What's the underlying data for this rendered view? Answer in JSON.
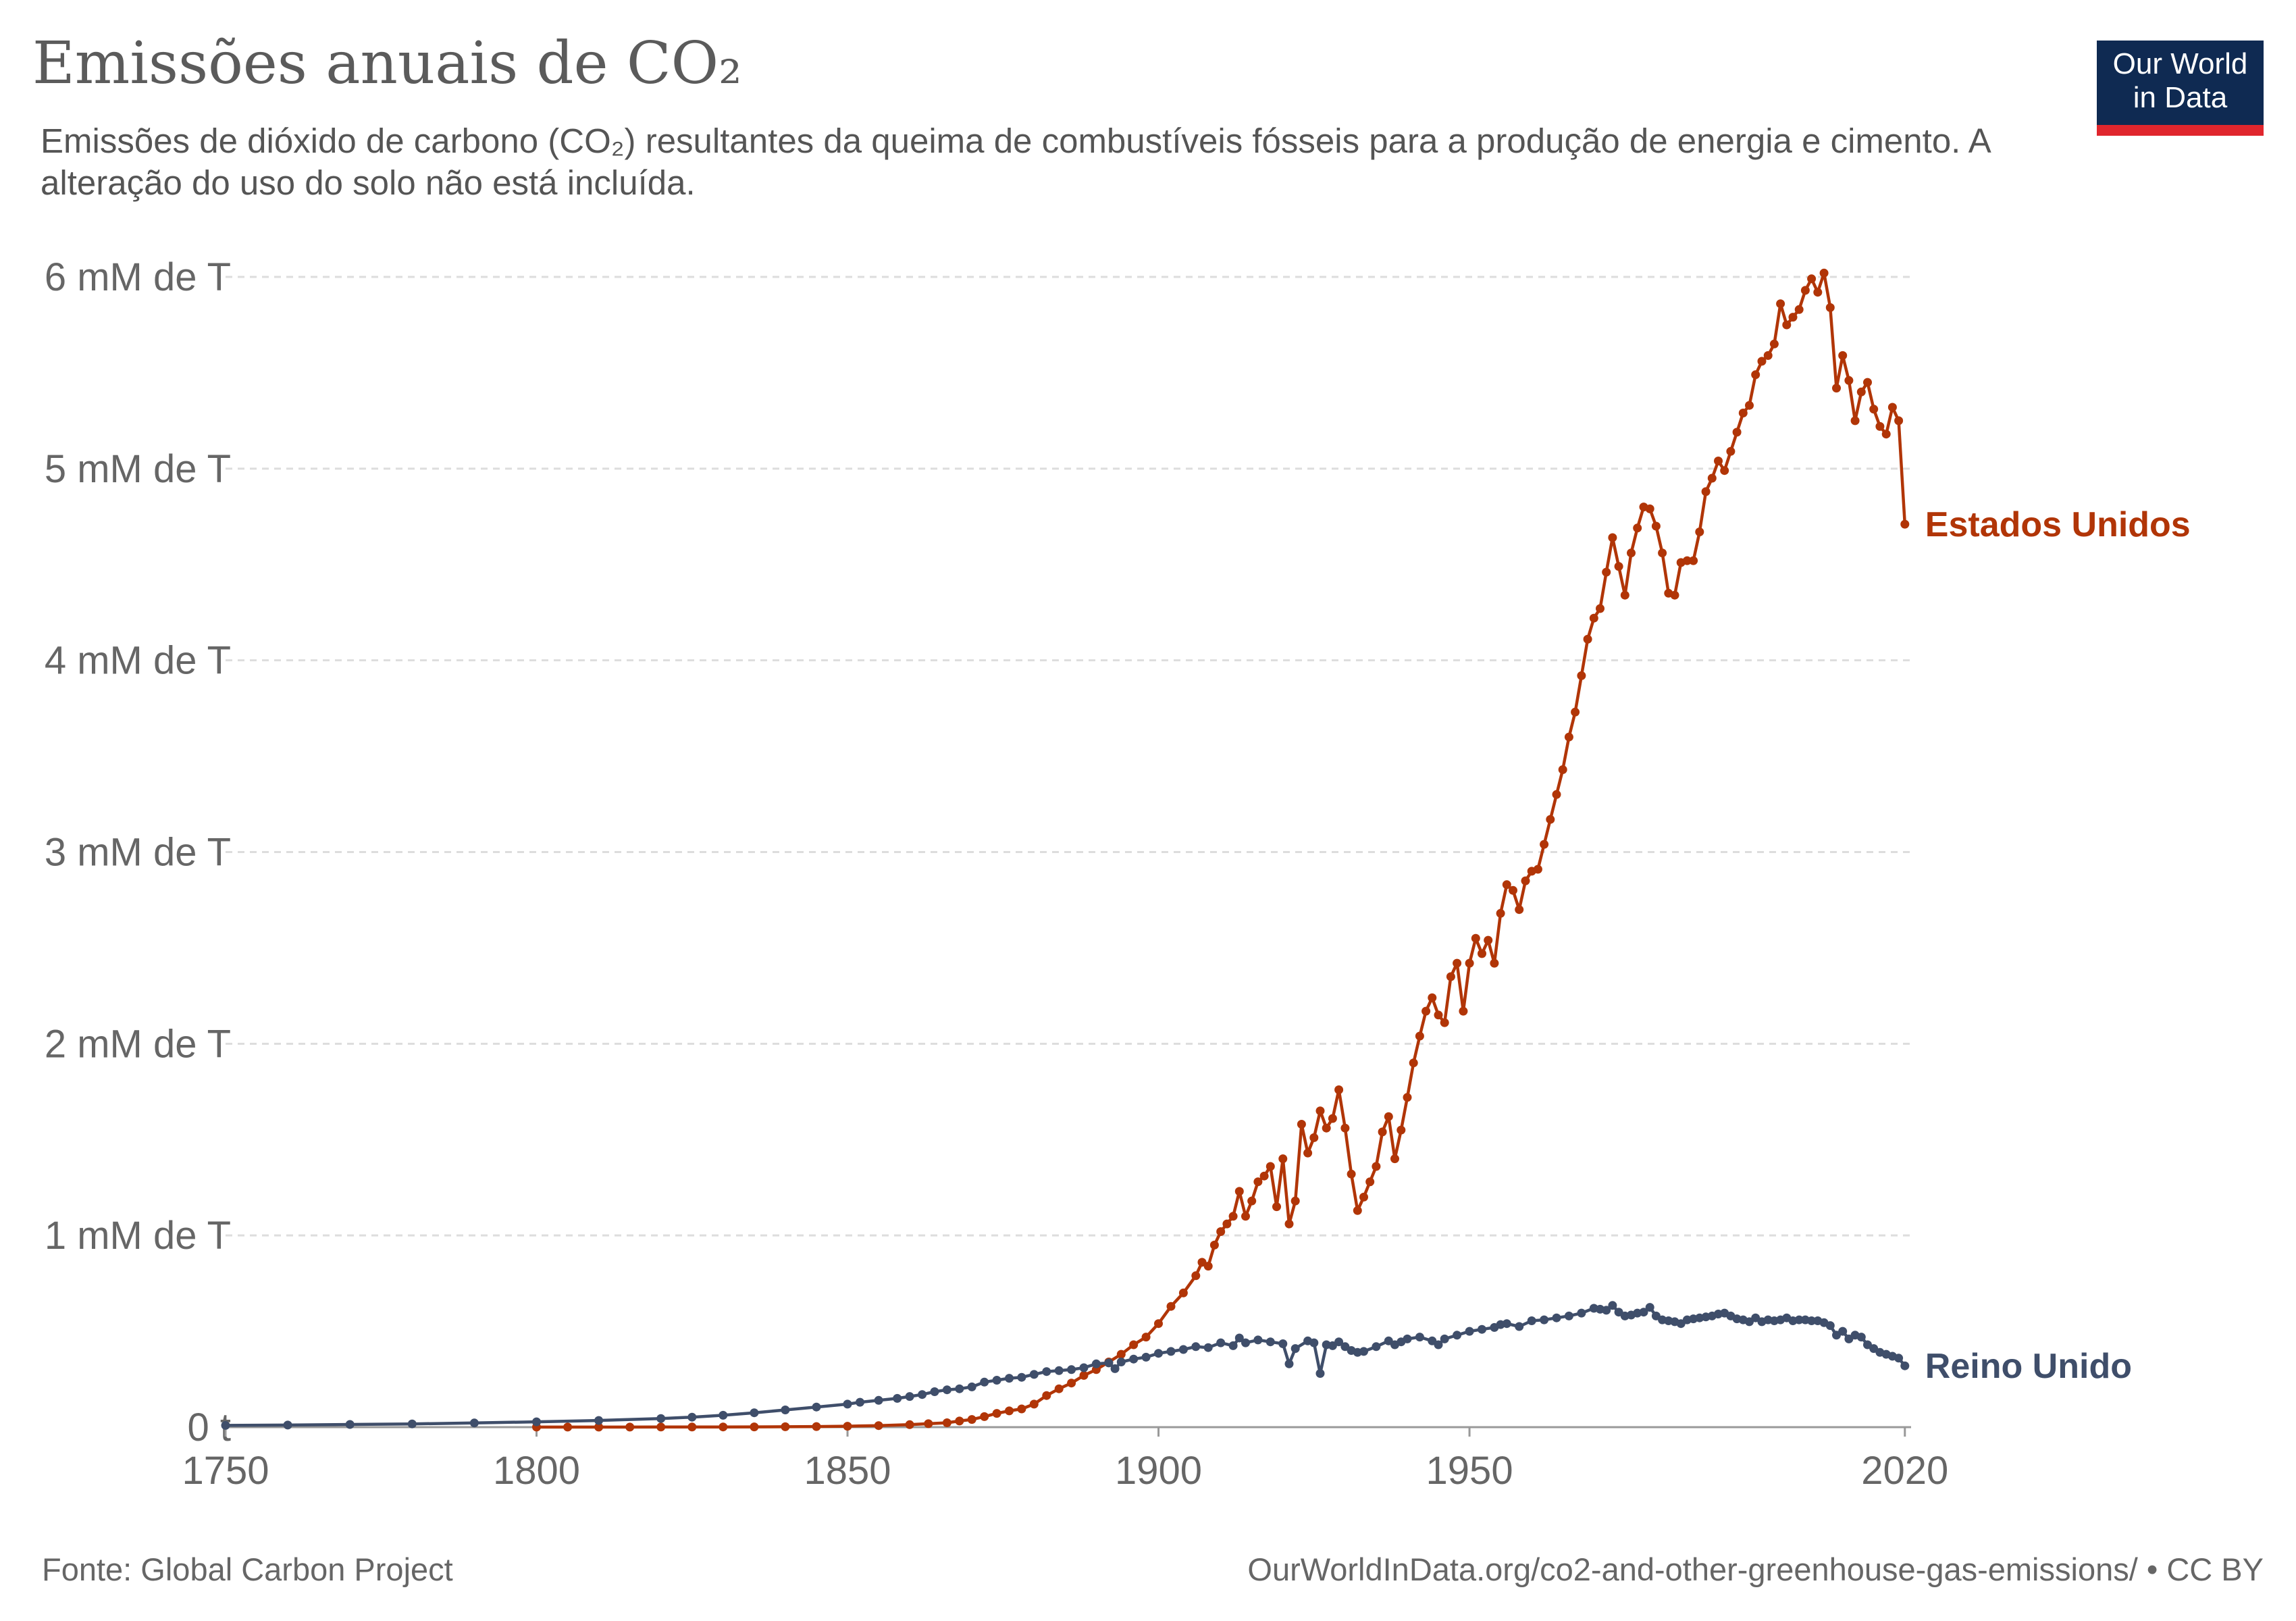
{
  "header": {
    "title": "Emissões anuais de CO₂",
    "subtitle": "Emissões de dióxido de carbono (CO₂) resultantes da queima de combustíveis fósseis para a produção de energia e cimento. A alteração do uso do solo não está incluída."
  },
  "logo": {
    "line1": "Our World",
    "line2": "in Data",
    "bg_color": "#0f2a52",
    "accent_color": "#e0262d"
  },
  "footer": {
    "source": "Fonte: Global Carbon Project",
    "url": "OurWorldInData.org/co2-and-other-greenhouse-gas-emissions/ • CC BY"
  },
  "chart_data": {
    "type": "line",
    "title": "Emissões anuais de CO₂",
    "subtitle": "Emissões de dióxido de carbono (CO₂) resultantes da queima de combustíveis fósseis para a produção de energia e cimento. A alteração do uso do solo não está incluída.",
    "xlabel": "",
    "ylabel": "",
    "xlim": [
      1750,
      2021
    ],
    "ylim": [
      0,
      6000000000
    ],
    "x_ticks": [
      {
        "value": 1750,
        "label": "1750"
      },
      {
        "value": 1800,
        "label": "1800"
      },
      {
        "value": 1850,
        "label": "1850"
      },
      {
        "value": 1900,
        "label": "1900"
      },
      {
        "value": 1950,
        "label": "1950"
      },
      {
        "value": 2020,
        "label": "2020"
      }
    ],
    "y_ticks": [
      {
        "value": 0,
        "label": "0 t"
      },
      {
        "value": 1000000000,
        "label": "1 mM de T"
      },
      {
        "value": 2000000000,
        "label": "2 mM de T"
      },
      {
        "value": 3000000000,
        "label": "3 mM de T"
      },
      {
        "value": 4000000000,
        "label": "4 mM de T"
      },
      {
        "value": 5000000000,
        "label": "5 mM de T"
      },
      {
        "value": 6000000000,
        "label": "6 mM de T"
      }
    ],
    "grid": true,
    "legend": "end-of-line labels",
    "series": [
      {
        "name": "Estados Unidos",
        "color": "#b13507",
        "points": [
          [
            1800,
            0.25
          ],
          [
            1805,
            0.3
          ],
          [
            1810,
            0.4
          ],
          [
            1815,
            0.5
          ],
          [
            1820,
            0.6
          ],
          [
            1825,
            0.8
          ],
          [
            1830,
            1.0
          ],
          [
            1835,
            1.3
          ],
          [
            1840,
            2.0
          ],
          [
            1845,
            3.0
          ],
          [
            1850,
            5.0
          ],
          [
            1855,
            8.0
          ],
          [
            1860,
            13.0
          ],
          [
            1863,
            18.0
          ],
          [
            1866,
            23.0
          ],
          [
            1868,
            32.0
          ],
          [
            1870,
            40.0
          ],
          [
            1872,
            55.0
          ],
          [
            1874,
            72.0
          ],
          [
            1876,
            85.0
          ],
          [
            1878,
            95.0
          ],
          [
            1880,
            120.0
          ],
          [
            1882,
            165.0
          ],
          [
            1884,
            200.0
          ],
          [
            1886,
            230.0
          ],
          [
            1888,
            270.0
          ],
          [
            1890,
            300.0
          ],
          [
            1892,
            340.0
          ],
          [
            1894,
            380.0
          ],
          [
            1896,
            430.0
          ],
          [
            1898,
            470.0
          ],
          [
            1900,
            540.0
          ],
          [
            1902,
            630.0
          ],
          [
            1904,
            700.0
          ],
          [
            1906,
            790.0
          ],
          [
            1907,
            860.0
          ],
          [
            1908,
            840.0
          ],
          [
            1909,
            950.0
          ],
          [
            1910,
            1020.0
          ],
          [
            1911,
            1060.0
          ],
          [
            1912,
            1100.0
          ],
          [
            1913,
            1230.0
          ],
          [
            1914,
            1100.0
          ],
          [
            1915,
            1180.0
          ],
          [
            1916,
            1280.0
          ],
          [
            1917,
            1310.0
          ],
          [
            1918,
            1360.0
          ],
          [
            1919,
            1150.0
          ],
          [
            1920,
            1400.0
          ],
          [
            1921,
            1060.0
          ],
          [
            1922,
            1180.0
          ],
          [
            1923,
            1580.0
          ],
          [
            1924,
            1430.0
          ],
          [
            1925,
            1510.0
          ],
          [
            1926,
            1650.0
          ],
          [
            1927,
            1560.0
          ],
          [
            1928,
            1610.0
          ],
          [
            1929,
            1760.0
          ],
          [
            1930,
            1560.0
          ],
          [
            1931,
            1320.0
          ],
          [
            1932,
            1130.0
          ],
          [
            1933,
            1200.0
          ],
          [
            1934,
            1280.0
          ],
          [
            1935,
            1360.0
          ],
          [
            1936,
            1540.0
          ],
          [
            1937,
            1620.0
          ],
          [
            1938,
            1400.0
          ],
          [
            1939,
            1550.0
          ],
          [
            1940,
            1720.0
          ],
          [
            1941,
            1900.0
          ],
          [
            1942,
            2040.0
          ],
          [
            1943,
            2170.0
          ],
          [
            1944,
            2240.0
          ],
          [
            1945,
            2150.0
          ],
          [
            1946,
            2110.0
          ],
          [
            1947,
            2350.0
          ],
          [
            1948,
            2420.0
          ],
          [
            1949,
            2170.0
          ],
          [
            1950,
            2420.0
          ],
          [
            1951,
            2550.0
          ],
          [
            1952,
            2470.0
          ],
          [
            1953,
            2540.0
          ],
          [
            1954,
            2420.0
          ],
          [
            1955,
            2680.0
          ],
          [
            1956,
            2830.0
          ],
          [
            1957,
            2800.0
          ],
          [
            1958,
            2700.0
          ],
          [
            1959,
            2850.0
          ],
          [
            1960,
            2900.0
          ],
          [
            1961,
            2910.0
          ],
          [
            1962,
            3040.0
          ],
          [
            1963,
            3170.0
          ],
          [
            1964,
            3300.0
          ],
          [
            1965,
            3430.0
          ],
          [
            1966,
            3600.0
          ],
          [
            1967,
            3730.0
          ],
          [
            1968,
            3920.0
          ],
          [
            1969,
            4110.0
          ],
          [
            1970,
            4220.0
          ],
          [
            1971,
            4270.0
          ],
          [
            1972,
            4460.0
          ],
          [
            1973,
            4640.0
          ],
          [
            1974,
            4490.0
          ],
          [
            1975,
            4340.0
          ],
          [
            1976,
            4560.0
          ],
          [
            1977,
            4690.0
          ],
          [
            1978,
            4800.0
          ],
          [
            1979,
            4790.0
          ],
          [
            1980,
            4700.0
          ],
          [
            1981,
            4560.0
          ],
          [
            1982,
            4350.0
          ],
          [
            1983,
            4340.0
          ],
          [
            1984,
            4510.0
          ],
          [
            1985,
            4520.0
          ],
          [
            1986,
            4520.0
          ],
          [
            1987,
            4670.0
          ],
          [
            1988,
            4880.0
          ],
          [
            1989,
            4950.0
          ],
          [
            1990,
            5040.0
          ],
          [
            1991,
            4990.0
          ],
          [
            1992,
            5090.0
          ],
          [
            1993,
            5190.0
          ],
          [
            1994,
            5290.0
          ],
          [
            1995,
            5330.0
          ],
          [
            1996,
            5490.0
          ],
          [
            1997,
            5560.0
          ],
          [
            1998,
            5590.0
          ],
          [
            1999,
            5650.0
          ],
          [
            2000,
            5860.0
          ],
          [
            2001,
            5750.0
          ],
          [
            2002,
            5790.0
          ],
          [
            2003,
            5830.0
          ],
          [
            2004,
            5930.0
          ],
          [
            2005,
            5990.0
          ],
          [
            2006,
            5920.0
          ],
          [
            2007,
            6020.0
          ],
          [
            2008,
            5840.0
          ],
          [
            2009,
            5420.0
          ],
          [
            2010,
            5590.0
          ],
          [
            2011,
            5460.0
          ],
          [
            2012,
            5250.0
          ],
          [
            2013,
            5400.0
          ],
          [
            2014,
            5450.0
          ],
          [
            2015,
            5310.0
          ],
          [
            2016,
            5220.0
          ],
          [
            2017,
            5180.0
          ],
          [
            2018,
            5320.0
          ],
          [
            2019,
            5250.0
          ],
          [
            2020,
            4710.0
          ]
        ]
      },
      {
        "name": "Reino Unido",
        "color": "#3f4e6a",
        "points": [
          [
            1750,
            9.0
          ],
          [
            1760,
            11.0
          ],
          [
            1770,
            14.0
          ],
          [
            1780,
            17.0
          ],
          [
            1790,
            22.0
          ],
          [
            1800,
            28.0
          ],
          [
            1810,
            35.0
          ],
          [
            1820,
            45.0
          ],
          [
            1825,
            52.0
          ],
          [
            1830,
            62.0
          ],
          [
            1835,
            75.0
          ],
          [
            1840,
            90.0
          ],
          [
            1845,
            105.0
          ],
          [
            1850,
            120.0
          ],
          [
            1852,
            130.0
          ],
          [
            1855,
            140.0
          ],
          [
            1858,
            150.0
          ],
          [
            1860,
            160.0
          ],
          [
            1862,
            170.0
          ],
          [
            1864,
            185.0
          ],
          [
            1866,
            195.0
          ],
          [
            1868,
            200.0
          ],
          [
            1870,
            210.0
          ],
          [
            1872,
            235.0
          ],
          [
            1874,
            245.0
          ],
          [
            1876,
            255.0
          ],
          [
            1878,
            260.0
          ],
          [
            1880,
            275.0
          ],
          [
            1882,
            290.0
          ],
          [
            1884,
            295.0
          ],
          [
            1886,
            300.0
          ],
          [
            1888,
            310.0
          ],
          [
            1890,
            330.0
          ],
          [
            1892,
            335.0
          ],
          [
            1893,
            305.0
          ],
          [
            1894,
            340.0
          ],
          [
            1896,
            355.0
          ],
          [
            1898,
            365.0
          ],
          [
            1900,
            385.0
          ],
          [
            1902,
            395.0
          ],
          [
            1904,
            405.0
          ],
          [
            1906,
            420.0
          ],
          [
            1908,
            415.0
          ],
          [
            1910,
            440.0
          ],
          [
            1912,
            425.0
          ],
          [
            1913,
            465.0
          ],
          [
            1914,
            440.0
          ],
          [
            1916,
            455.0
          ],
          [
            1918,
            445.0
          ],
          [
            1920,
            435.0
          ],
          [
            1921,
            330.0
          ],
          [
            1922,
            410.0
          ],
          [
            1924,
            450.0
          ],
          [
            1925,
            440.0
          ],
          [
            1926,
            280.0
          ],
          [
            1927,
            430.0
          ],
          [
            1928,
            425.0
          ],
          [
            1929,
            445.0
          ],
          [
            1930,
            420.0
          ],
          [
            1931,
            400.0
          ],
          [
            1932,
            390.0
          ],
          [
            1933,
            395.0
          ],
          [
            1935,
            420.0
          ],
          [
            1937,
            450.0
          ],
          [
            1938,
            430.0
          ],
          [
            1939,
            445.0
          ],
          [
            1940,
            460.0
          ],
          [
            1942,
            470.0
          ],
          [
            1944,
            450.0
          ],
          [
            1945,
            430.0
          ],
          [
            1946,
            460.0
          ],
          [
            1948,
            480.0
          ],
          [
            1950,
            500.0
          ],
          [
            1952,
            510.0
          ],
          [
            1954,
            520.0
          ],
          [
            1955,
            535.0
          ],
          [
            1956,
            540.0
          ],
          [
            1958,
            525.0
          ],
          [
            1960,
            555.0
          ],
          [
            1962,
            560.0
          ],
          [
            1964,
            570.0
          ],
          [
            1966,
            580.0
          ],
          [
            1968,
            595.0
          ],
          [
            1970,
            620.0
          ],
          [
            1971,
            615.0
          ],
          [
            1972,
            610.0
          ],
          [
            1973,
            635.0
          ],
          [
            1974,
            600.0
          ],
          [
            1975,
            580.0
          ],
          [
            1976,
            585.0
          ],
          [
            1977,
            595.0
          ],
          [
            1978,
            600.0
          ],
          [
            1979,
            625.0
          ],
          [
            1980,
            580.0
          ],
          [
            1981,
            560.0
          ],
          [
            1982,
            555.0
          ],
          [
            1983,
            550.0
          ],
          [
            1984,
            540.0
          ],
          [
            1985,
            560.0
          ],
          [
            1986,
            565.0
          ],
          [
            1987,
            570.0
          ],
          [
            1988,
            575.0
          ],
          [
            1989,
            580.0
          ],
          [
            1990,
            590.0
          ],
          [
            1991,
            595.0
          ],
          [
            1992,
            580.0
          ],
          [
            1993,
            565.0
          ],
          [
            1994,
            560.0
          ],
          [
            1995,
            550.0
          ],
          [
            1996,
            570.0
          ],
          [
            1997,
            550.0
          ],
          [
            1998,
            560.0
          ],
          [
            1999,
            555.0
          ],
          [
            2000,
            560.0
          ],
          [
            2001,
            570.0
          ],
          [
            2002,
            555.0
          ],
          [
            2003,
            560.0
          ],
          [
            2004,
            560.0
          ],
          [
            2005,
            555.0
          ],
          [
            2006,
            555.0
          ],
          [
            2007,
            545.0
          ],
          [
            2008,
            530.0
          ],
          [
            2009,
            480.0
          ],
          [
            2010,
            500.0
          ],
          [
            2011,
            460.0
          ],
          [
            2012,
            480.0
          ],
          [
            2013,
            470.0
          ],
          [
            2014,
            430.0
          ],
          [
            2015,
            410.0
          ],
          [
            2016,
            390.0
          ],
          [
            2017,
            380.0
          ],
          [
            2018,
            370.0
          ],
          [
            2019,
            360.0
          ],
          [
            2020,
            320.0
          ]
        ]
      }
    ],
    "value_unit_note": "series point values are in millions of tonnes"
  }
}
